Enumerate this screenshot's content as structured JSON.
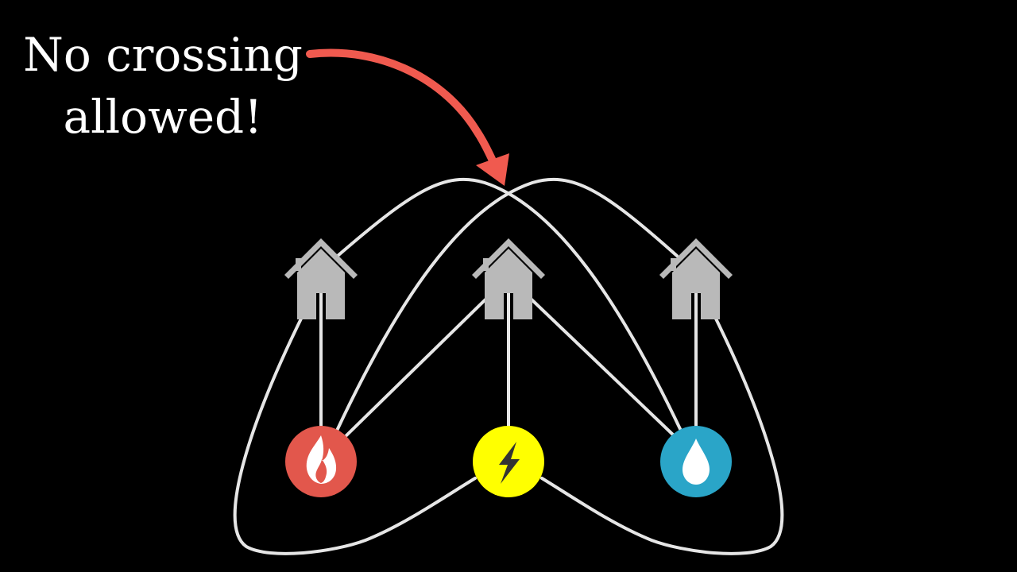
{
  "caption": {
    "line1": "No crossing",
    "line2": "allowed!"
  },
  "colors": {
    "background": "#000000",
    "edge": "#e6e6e6",
    "arrow": "#f05a4f",
    "house": "#b9b9b9",
    "gas": "#e2574c",
    "electric": "#ffff00",
    "water": "#2aa5c8"
  },
  "nodes": {
    "houses": [
      {
        "name": "house-left",
        "icon": "house-icon"
      },
      {
        "name": "house-middle",
        "icon": "house-icon"
      },
      {
        "name": "house-right",
        "icon": "house-icon"
      }
    ],
    "utilities": [
      {
        "name": "gas",
        "icon": "flame-icon"
      },
      {
        "name": "electricity",
        "icon": "lightning-icon"
      },
      {
        "name": "water",
        "icon": "water-drop-icon"
      }
    ]
  }
}
